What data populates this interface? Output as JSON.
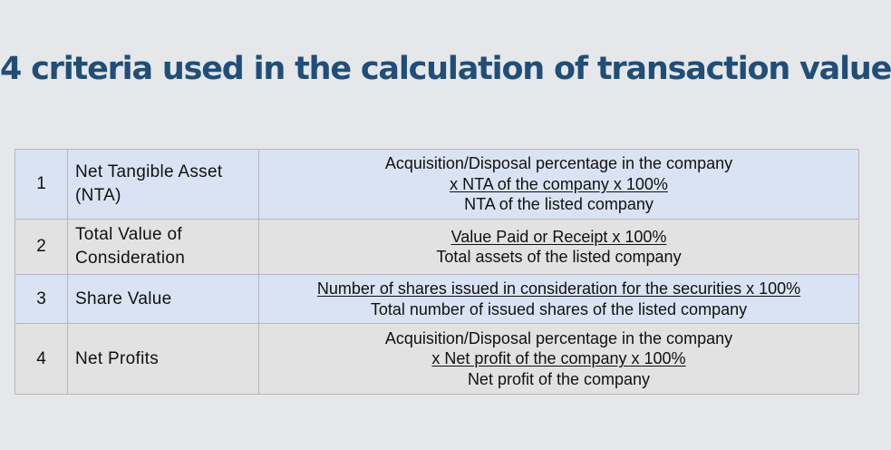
{
  "title": "4 criteria used in the calculation of transaction value",
  "rows": [
    {
      "number": "1",
      "name_line1": "Net Tangible Asset",
      "name_line2": "(NTA)",
      "formula_line1": "Acquisition/Disposal percentage in the company",
      "formula_line2": "x NTA of the company x 100%",
      "formula_line3": "NTA of the listed company"
    },
    {
      "number": "2",
      "name_line1": "Total Value of",
      "name_line2": "Consideration",
      "formula_line1": "Value Paid or Receipt x 100%",
      "formula_line2": "Total assets of the listed company"
    },
    {
      "number": "3",
      "name_line1": "Share Value",
      "formula_line1": "Number of shares issued in consideration for the securities x 100%",
      "formula_line2": "Total number of issued shares of the listed company"
    },
    {
      "number": "4",
      "name_line1": "Net Profits",
      "formula_line1": "Acquisition/Disposal percentage in the company",
      "formula_line2": "x Net profit of the company x 100%",
      "formula_line3": "Net profit of the company"
    }
  ],
  "colors": {
    "title": "#1f4e79",
    "background": "#e6e7e9",
    "row_blue": "#dae3f3",
    "row_gray": "#e2e2e2"
  }
}
